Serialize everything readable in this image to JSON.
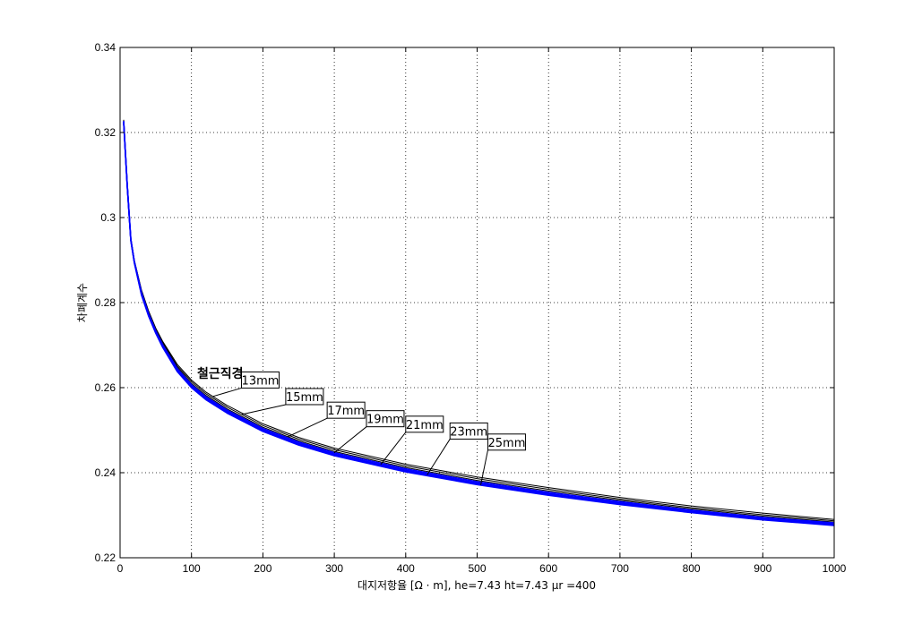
{
  "chart_data": {
    "type": "line",
    "title": "",
    "xlabel": "대지저항율 [Ω · m], he=7.43 ht=7.43 μr =400",
    "ylabel": "차폐계수",
    "xlim": [
      0,
      1000
    ],
    "ylim": [
      0.22,
      0.34
    ],
    "xticks": [
      "0",
      "100",
      "200",
      "300",
      "400",
      "500",
      "600",
      "700",
      "800",
      "900",
      "1000"
    ],
    "yticks": [
      "0.22",
      "0.24",
      "0.26",
      "0.28",
      "0.3",
      "0.32",
      "0.34"
    ],
    "grid": true,
    "annotation_title": "철근직경",
    "x": [
      5,
      10,
      15,
      20,
      30,
      40,
      50,
      60,
      80,
      100,
      120,
      150,
      200,
      250,
      300,
      400,
      500,
      600,
      700,
      800,
      900,
      1000
    ],
    "series": [
      {
        "name": "13mm",
        "color": "#000000",
        "values": [
          0.323,
          0.308,
          0.2952,
          0.29,
          0.283,
          0.278,
          0.274,
          0.2708,
          0.2655,
          0.2618,
          0.259,
          0.2558,
          0.2515,
          0.2483,
          0.2458,
          0.242,
          0.239,
          0.2365,
          0.2342,
          0.2322,
          0.2305,
          0.229
        ]
      },
      {
        "name": "15mm",
        "color": "#000000",
        "values": [
          0.3229,
          0.3079,
          0.2951,
          0.2899,
          0.2828,
          0.2778,
          0.2738,
          0.2705,
          0.2651,
          0.2614,
          0.2586,
          0.2554,
          0.2511,
          0.2479,
          0.2454,
          0.2416,
          0.2386,
          0.2361,
          0.2338,
          0.2318,
          0.2301,
          0.2287
        ]
      },
      {
        "name": "17mm",
        "color": "#000000",
        "values": [
          0.3228,
          0.3078,
          0.295,
          0.2898,
          0.2826,
          0.2776,
          0.2736,
          0.2702,
          0.2648,
          0.261,
          0.2582,
          0.255,
          0.2507,
          0.2475,
          0.245,
          0.2412,
          0.2382,
          0.2357,
          0.2335,
          0.2315,
          0.2298,
          0.2284
        ]
      },
      {
        "name": "19mm",
        "color": "#0000ff",
        "values": [
          0.3227,
          0.3077,
          0.2949,
          0.2897,
          0.2824,
          0.2774,
          0.2734,
          0.27,
          0.2645,
          0.2607,
          0.2579,
          0.2547,
          0.2504,
          0.2472,
          0.2447,
          0.2409,
          0.2379,
          0.2354,
          0.2332,
          0.2312,
          0.2295,
          0.2282
        ]
      },
      {
        "name": "21mm",
        "color": "#0000ff",
        "values": [
          0.3226,
          0.3076,
          0.2948,
          0.2896,
          0.2822,
          0.2772,
          0.2732,
          0.2698,
          0.2642,
          0.2604,
          0.2576,
          0.2544,
          0.2501,
          0.2469,
          0.2444,
          0.2406,
          0.2376,
          0.2351,
          0.2329,
          0.231,
          0.2293,
          0.228
        ]
      },
      {
        "name": "23mm",
        "color": "#0000ff",
        "values": [
          0.3225,
          0.3075,
          0.2947,
          0.2895,
          0.282,
          0.277,
          0.273,
          0.2696,
          0.264,
          0.2602,
          0.2574,
          0.2542,
          0.2499,
          0.2467,
          0.2442,
          0.2404,
          0.2374,
          0.2349,
          0.2327,
          0.2308,
          0.2291,
          0.2278
        ]
      },
      {
        "name": "25mm",
        "color": "#0000ff",
        "values": [
          0.3224,
          0.3074,
          0.2946,
          0.2894,
          0.2818,
          0.2768,
          0.2728,
          0.2694,
          0.2638,
          0.26,
          0.2572,
          0.254,
          0.2497,
          0.2465,
          0.244,
          0.2402,
          0.2372,
          0.2347,
          0.2325,
          0.2306,
          0.2289,
          0.2276
        ]
      }
    ],
    "labels": [
      {
        "series": "13mm",
        "text": "13mm",
        "at_x": 130,
        "box_x": 170,
        "box_y": 0.2618
      },
      {
        "series": "15mm",
        "text": "15mm",
        "at_x": 170,
        "box_x": 232,
        "box_y": 0.2579
      },
      {
        "series": "17mm",
        "text": "17mm",
        "at_x": 235,
        "box_x": 290,
        "box_y": 0.2547
      },
      {
        "series": "19mm",
        "text": "19mm",
        "at_x": 300,
        "box_x": 345,
        "box_y": 0.2527
      },
      {
        "series": "21mm",
        "text": "21mm",
        "at_x": 365,
        "box_x": 400,
        "box_y": 0.2514
      },
      {
        "series": "23mm",
        "text": "23mm",
        "at_x": 430,
        "box_x": 462,
        "box_y": 0.2498
      },
      {
        "series": "25mm",
        "text": "25mm",
        "at_x": 505,
        "box_x": 515,
        "box_y": 0.2472
      }
    ]
  }
}
